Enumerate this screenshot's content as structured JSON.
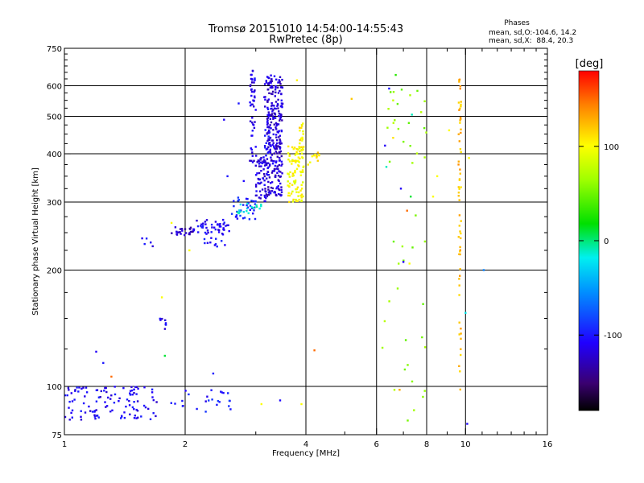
{
  "chart_data": {
    "type": "scatter",
    "title": "Tromsø 20151010 14:54:00-14:55:43",
    "subtitle": "RwPretec (8p)",
    "xlabel": "Frequency [MHz]",
    "ylabel": "Stationary phase Virtual Height [km]",
    "x_scale": "log2",
    "y_scale": "log",
    "xlim": [
      1,
      16
    ],
    "ylim": [
      75,
      750
    ],
    "x_ticks": [
      1,
      2,
      4,
      6,
      8,
      10,
      16
    ],
    "x_tick_labels": [
      "1",
      "2",
      "4",
      "6",
      "8",
      "10",
      "16"
    ],
    "y_ticks": [
      75,
      100,
      200,
      300,
      400,
      500,
      600,
      750
    ],
    "y_tick_labels": [
      "75",
      "100",
      "200",
      "300",
      "400",
      "500",
      "600",
      "750"
    ],
    "grid": true,
    "phase_info": {
      "title": "Phases",
      "line_o": "mean, sd,O:-104.6, 14.2",
      "line_x": "mean, sd,X:  88.4, 20.3"
    },
    "colorbar": {
      "label": "[deg]",
      "range": [
        -180,
        180
      ],
      "ticks": [
        100,
        0,
        -100
      ],
      "tick_labels": [
        "100",
        "0",
        "-100"
      ],
      "colormap": "rainbow"
    },
    "traces": [
      {
        "x_range": [
          1.85,
          2.1
        ],
        "y_range": [
          245,
          260
        ],
        "phase": -125,
        "n": 25
      },
      {
        "x_range": [
          2.1,
          2.6
        ],
        "y_range": [
          248,
          270
        ],
        "phase": -110,
        "n": 45
      },
      {
        "x_range": [
          2.6,
          3.0
        ],
        "y_range": [
          270,
          310
        ],
        "phase": -95,
        "n": 35
      },
      {
        "x_range": [
          2.7,
          3.1
        ],
        "y_range": [
          280,
          300
        ],
        "phase": -20,
        "n": 18
      },
      {
        "x_range": [
          3.0,
          3.2
        ],
        "y_range": [
          300,
          400
        ],
        "phase": -115,
        "n": 60
      },
      {
        "x_range": [
          3.2,
          3.5
        ],
        "y_range": [
          310,
          640
        ],
        "phase": -120,
        "n": 260
      },
      {
        "x_range": [
          2.9,
          3.0
        ],
        "y_range": [
          380,
          660
        ],
        "phase": -115,
        "n": 50
      },
      {
        "x_range": [
          3.15,
          3.25
        ],
        "y_range": [
          350,
          650
        ],
        "phase": -110,
        "n": 40
      },
      {
        "x_range": [
          3.6,
          3.95
        ],
        "y_range": [
          300,
          420
        ],
        "phase": 100,
        "n": 95
      },
      {
        "x_range": [
          3.85,
          3.95
        ],
        "y_range": [
          400,
          480
        ],
        "phase": 105,
        "n": 20
      },
      {
        "x_range": [
          4.05,
          4.35
        ],
        "y_range": [
          370,
          410
        ],
        "phase": 110,
        "n": 12
      },
      {
        "x_range": [
          2.2,
          2.55
        ],
        "y_range": [
          230,
          250
        ],
        "phase": -100,
        "n": 12
      },
      {
        "x_range": [
          1.55,
          1.7
        ],
        "y_range": [
          230,
          245
        ],
        "phase": -110,
        "n": 5
      },
      {
        "x_range": [
          1.73,
          1.8
        ],
        "y_range": [
          140,
          150
        ],
        "phase": -110,
        "n": 8
      },
      {
        "x_range": [
          1.0,
          1.7
        ],
        "y_range": [
          82,
          100
        ],
        "phase": -110,
        "n": 110
      },
      {
        "x_range": [
          1.8,
          2.6
        ],
        "y_range": [
          86,
          98
        ],
        "phase": -100,
        "n": 25
      },
      {
        "x_range": [
          9.6,
          9.75
        ],
        "y_range": [
          95,
          650
        ],
        "phase": 125,
        "n": 60
      },
      {
        "x_range": [
          6.2,
          8.0
        ],
        "y_range": [
          78,
          620
        ],
        "phase": 60,
        "n": 45
      }
    ],
    "scattered_points": [
      {
        "x": 1.2,
        "y": 123,
        "phase": -110
      },
      {
        "x": 1.25,
        "y": 115,
        "phase": -100
      },
      {
        "x": 1.31,
        "y": 106,
        "phase": 150
      },
      {
        "x": 1.78,
        "y": 120,
        "phase": 10
      },
      {
        "x": 1.75,
        "y": 170,
        "phase": 100
      },
      {
        "x": 1.85,
        "y": 265,
        "phase": 100
      },
      {
        "x": 2.05,
        "y": 225,
        "phase": 100
      },
      {
        "x": 2.35,
        "y": 108,
        "phase": -100
      },
      {
        "x": 2.55,
        "y": 350,
        "phase": -100
      },
      {
        "x": 2.8,
        "y": 340,
        "phase": -105
      },
      {
        "x": 2.72,
        "y": 540,
        "phase": -100
      },
      {
        "x": 2.5,
        "y": 490,
        "phase": -110
      },
      {
        "x": 3.9,
        "y": 90,
        "phase": 100
      },
      {
        "x": 3.1,
        "y": 90,
        "phase": 100
      },
      {
        "x": 3.45,
        "y": 92,
        "phase": -105
      },
      {
        "x": 3.8,
        "y": 620,
        "phase": 105
      },
      {
        "x": 4.2,
        "y": 124,
        "phase": 150
      },
      {
        "x": 5.2,
        "y": 555,
        "phase": 120
      },
      {
        "x": 6.3,
        "y": 420,
        "phase": -110
      },
      {
        "x": 6.45,
        "y": 590,
        "phase": -100
      },
      {
        "x": 6.6,
        "y": 550,
        "phase": 80
      },
      {
        "x": 6.9,
        "y": 325,
        "phase": -110
      },
      {
        "x": 6.7,
        "y": 640,
        "phase": 30
      },
      {
        "x": 7.15,
        "y": 285,
        "phase": 150
      },
      {
        "x": 7.35,
        "y": 505,
        "phase": -10
      },
      {
        "x": 7.0,
        "y": 210,
        "phase": -110
      },
      {
        "x": 7.25,
        "y": 208,
        "phase": 100
      },
      {
        "x": 6.85,
        "y": 98,
        "phase": 130
      },
      {
        "x": 7.3,
        "y": 310,
        "phase": 10
      },
      {
        "x": 8.5,
        "y": 350,
        "phase": 100
      },
      {
        "x": 8.3,
        "y": 310,
        "phase": 100
      },
      {
        "x": 9.1,
        "y": 460,
        "phase": 100
      },
      {
        "x": 10.2,
        "y": 390,
        "phase": 100
      },
      {
        "x": 10.0,
        "y": 155,
        "phase": -20
      },
      {
        "x": 11.1,
        "y": 200,
        "phase": -60
      },
      {
        "x": 10.1,
        "y": 80,
        "phase": -105
      },
      {
        "x": 6.35,
        "y": 370,
        "phase": -10
      },
      {
        "x": 6.6,
        "y": 440,
        "phase": 110
      }
    ]
  }
}
